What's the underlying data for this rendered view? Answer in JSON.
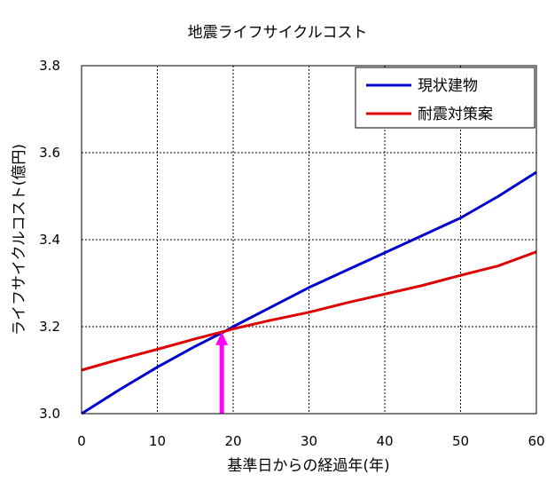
{
  "chart_data": {
    "type": "line",
    "title": "地震ライフサイクルコスト",
    "xlabel": "基準日からの経過年(年)",
    "ylabel": "ライフサイクルコスト(億円)",
    "xlim": [
      0,
      60
    ],
    "ylim": [
      3.0,
      3.8
    ],
    "x_ticks": [
      0,
      10,
      20,
      30,
      40,
      50,
      60
    ],
    "y_ticks": [
      3.0,
      3.2,
      3.4,
      3.6,
      3.8
    ],
    "x_tick_labels": [
      "0",
      "10",
      "20",
      "30",
      "40",
      "50",
      "60"
    ],
    "y_tick_labels": [
      "3.0",
      "3.2",
      "3.4",
      "3.6",
      "3.8"
    ],
    "grid": true,
    "legend_position": "top-right",
    "series": [
      {
        "name": "現状建物",
        "color": "#0000cc",
        "x": [
          0,
          5,
          10,
          15,
          19,
          20,
          25,
          30,
          35,
          40,
          45,
          50,
          55,
          60
        ],
        "y": [
          3.0,
          3.055,
          3.107,
          3.155,
          3.19,
          3.2,
          3.245,
          3.29,
          3.33,
          3.37,
          3.41,
          3.45,
          3.5,
          3.555
        ]
      },
      {
        "name": "耐震対策案",
        "color": "#dd0000",
        "x": [
          0,
          5,
          10,
          15,
          19,
          20,
          25,
          30,
          35,
          40,
          45,
          50,
          55,
          60
        ],
        "y": [
          3.1,
          3.125,
          3.148,
          3.172,
          3.19,
          3.195,
          3.215,
          3.233,
          3.255,
          3.275,
          3.295,
          3.318,
          3.34,
          3.372
        ]
      }
    ],
    "annotations": [
      {
        "type": "arrow",
        "color": "#ff00ff",
        "x": 18.5,
        "y_from": 3.0,
        "y_to": 3.19
      }
    ]
  }
}
